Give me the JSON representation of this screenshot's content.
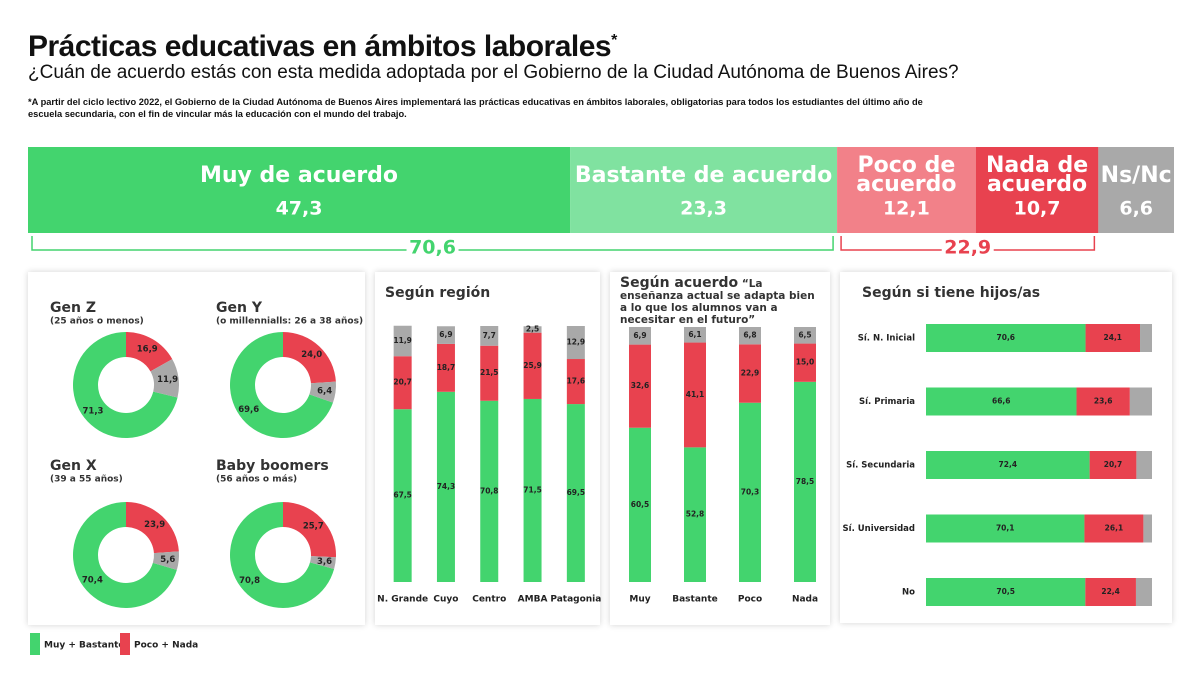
{
  "title": "Prácticas educativas en ámbitos laborales",
  "title_mark": "*",
  "subtitle": "¿Cuán de acuerdo estás con esta medida adoptada por el Gobierno de la Ciudad Autónoma de Buenos Aires?",
  "footnote": "*A partir del ciclo lectivo 2022, el Gobierno de la Ciudad Autónoma de Buenos Aires implementará las prácticas educativas en ámbitos laborales, obligatorias para todos los estudiantes del último año de escuela secundaria, con el fin de vincular más la educación con el mundo del trabajo.",
  "legend": [
    {
      "name": "Muy + Bastante",
      "color": "#43d46e"
    },
    {
      "name": "Poco + Nada",
      "color": "#e8424f"
    }
  ],
  "chart_data": [
    {
      "type": "bar",
      "stacked": true,
      "horizontal": true,
      "xlim": [
        0,
        100
      ],
      "series": [
        {
          "name": "Muy de acuerdo",
          "color": "#43d46e",
          "values": [
            47.3
          ],
          "value_labels": [
            "47,3"
          ]
        },
        {
          "name": "Bastante de acuerdo",
          "color": "#80e2a0",
          "values": [
            23.3
          ],
          "value_labels": [
            "23,3"
          ]
        },
        {
          "name": "Poco de acuerdo",
          "color": "#f28189",
          "values": [
            12.1
          ],
          "value_labels": [
            "12,1"
          ]
        },
        {
          "name": "Nada de acuerdo",
          "color": "#e8424f",
          "values": [
            10.7
          ],
          "value_labels": [
            "10,7"
          ]
        },
        {
          "name": "Ns/Nc",
          "color": "#a9a9a9",
          "values": [
            6.6
          ],
          "value_labels": [
            "6,6"
          ]
        }
      ],
      "groups": [
        {
          "value": 70.6,
          "label": "70,6",
          "color": "#43d46e"
        },
        {
          "value": 22.9,
          "label": "22,9",
          "color": "#e8424f"
        }
      ]
    },
    {
      "type": "pie",
      "donut": true,
      "title": "Gen Z",
      "subtitle": "(25 años o menos)",
      "values": [
        71.3,
        16.9,
        11.9
      ],
      "value_labels": [
        "71,3",
        "16,9",
        "11,9"
      ],
      "colors": [
        "#43d46e",
        "#e8424f",
        "#a9a9a9"
      ]
    },
    {
      "type": "pie",
      "donut": true,
      "title": "Gen Y",
      "subtitle": "(o millennialls: 26 a 38 años)",
      "values": [
        69.6,
        24.0,
        6.4
      ],
      "value_labels": [
        "69,6",
        "24,0",
        "6,4"
      ],
      "colors": [
        "#43d46e",
        "#e8424f",
        "#a9a9a9"
      ]
    },
    {
      "type": "pie",
      "donut": true,
      "title": "Gen X",
      "subtitle": "(39 a 55 años)",
      "values": [
        70.4,
        23.9,
        5.6
      ],
      "value_labels": [
        "70,4",
        "23,9",
        "5,6"
      ],
      "colors": [
        "#43d46e",
        "#e8424f",
        "#a9a9a9"
      ]
    },
    {
      "type": "pie",
      "donut": true,
      "title": "Baby boomers",
      "subtitle": "(56 años o más)",
      "values": [
        70.8,
        25.7,
        3.6
      ],
      "value_labels": [
        "70,8",
        "25,7",
        "3,6"
      ],
      "colors": [
        "#43d46e",
        "#e8424f",
        "#a9a9a9"
      ]
    },
    {
      "type": "bar",
      "stacked": true,
      "title": "Según región",
      "ylim": [
        0,
        100
      ],
      "categories": [
        "N. Grande",
        "Cuyo",
        "Centro",
        "AMBA",
        "Patagonia"
      ],
      "series": [
        {
          "color": "#43d46e",
          "values": [
            67.5,
            74.3,
            70.8,
            71.5,
            69.5
          ],
          "value_labels": [
            "67,5",
            "74,3",
            "70,8",
            "71,5",
            "69,5"
          ]
        },
        {
          "color": "#e8424f",
          "values": [
            20.7,
            18.7,
            21.5,
            25.9,
            17.6
          ],
          "value_labels": [
            "20,7",
            "18,7",
            "21,5",
            "25,9",
            "17,6"
          ]
        },
        {
          "color": "#a9a9a9",
          "values": [
            11.9,
            6.9,
            7.7,
            2.5,
            12.9
          ],
          "value_labels": [
            "11,9",
            "6,9",
            "7,7",
            "2,5",
            "12,9"
          ]
        }
      ]
    },
    {
      "type": "bar",
      "stacked": true,
      "title": "Según acuerdo",
      "subtitle": "“La enseñanza actual se adapta bien a lo que los alumnos van a necesitar en el futuro”",
      "ylim": [
        0,
        100
      ],
      "categories": [
        "Muy",
        "Bastante",
        "Poco",
        "Nada"
      ],
      "series": [
        {
          "color": "#43d46e",
          "values": [
            60.5,
            52.8,
            70.3,
            78.5
          ],
          "value_labels": [
            "60,5",
            "52,8",
            "70,3",
            "78,5"
          ]
        },
        {
          "color": "#e8424f",
          "values": [
            32.6,
            41.1,
            22.9,
            15.0
          ],
          "value_labels": [
            "32,6",
            "41,1",
            "22,9",
            "15,0"
          ]
        },
        {
          "color": "#a9a9a9",
          "values": [
            6.9,
            6.1,
            6.8,
            6.5
          ],
          "value_labels": [
            "6,9",
            "6,1",
            "6,8",
            "6,5"
          ]
        }
      ]
    },
    {
      "type": "bar",
      "stacked": true,
      "horizontal": true,
      "title": "Según si tiene hijos/as",
      "xlim": [
        0,
        100
      ],
      "categories": [
        "Sí. N. Inicial",
        "Sí. Primaria",
        "Sí. Secundaria",
        "Sí. Universidad",
        "No"
      ],
      "series": [
        {
          "color": "#43d46e",
          "values": [
            70.6,
            66.6,
            72.4,
            70.1,
            70.5
          ],
          "value_labels": [
            "70,6",
            "66,6",
            "72,4",
            "70,1",
            "70,5"
          ]
        },
        {
          "color": "#e8424f",
          "values": [
            24.1,
            23.6,
            20.7,
            26.1,
            22.4
          ],
          "value_labels": [
            "24,1",
            "23,6",
            "20,7",
            "26,1",
            "22,4"
          ]
        },
        {
          "color": "#a9a9a9",
          "values": [
            5.3,
            9.8,
            6.9,
            3.8,
            7.1
          ]
        }
      ]
    }
  ]
}
